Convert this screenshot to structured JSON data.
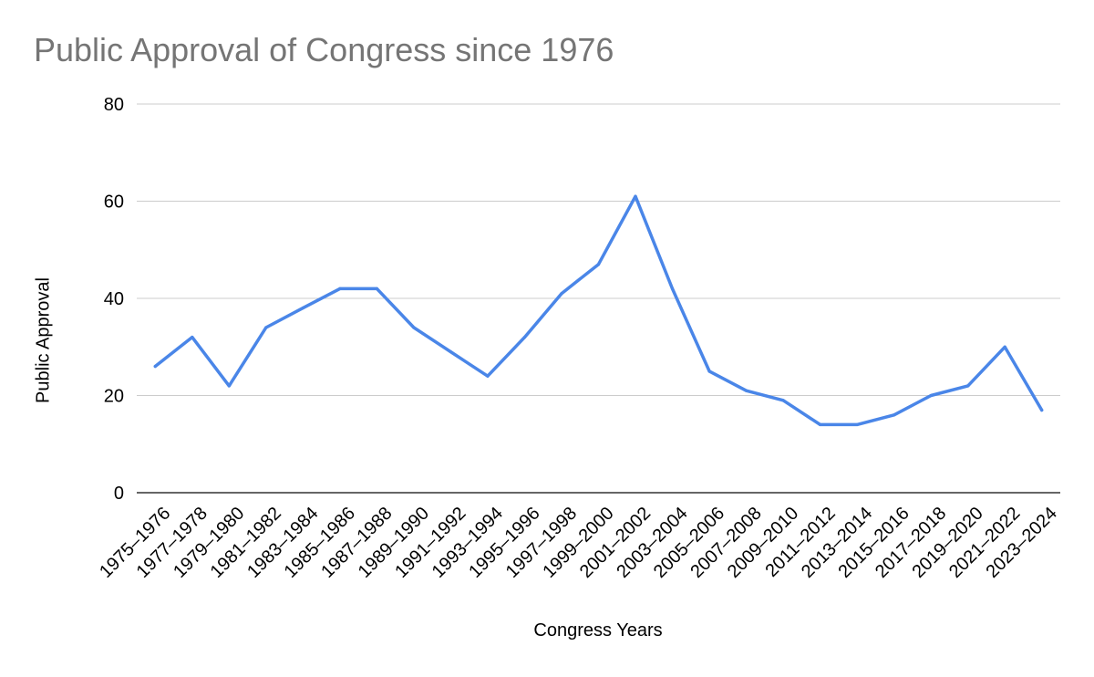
{
  "chart_data": {
    "type": "line",
    "title": "Public Approval of Congress since 1976",
    "xlabel": "Congress Years",
    "ylabel": "Public Approval",
    "ylim": [
      0,
      80
    ],
    "yticks": [
      0,
      20,
      40,
      60,
      80
    ],
    "grid": true,
    "legend": "none",
    "color": "#4a86e8",
    "categories": [
      "1975–1976",
      "1977–1978",
      "1979–1980",
      "1981–1982",
      "1983–1984",
      "1985–1986",
      "1987–1988",
      "1989–1990",
      "1991–1992",
      "1993–1994",
      "1995–1996",
      "1997–1998",
      "1999–2000",
      "2001–2002",
      "2003–2004",
      "2005–2006",
      "2007–2008",
      "2009–2010",
      "2011–2012",
      "2013–2014",
      "2015–2016",
      "2017–2018",
      "2019–2020",
      "2021–2022",
      "2023–2024"
    ],
    "values": [
      26,
      32,
      22,
      34,
      38,
      42,
      42,
      34,
      29,
      24,
      32,
      41,
      47,
      61,
      42,
      25,
      21,
      19,
      14,
      14,
      16,
      20,
      22,
      30,
      17
    ]
  }
}
